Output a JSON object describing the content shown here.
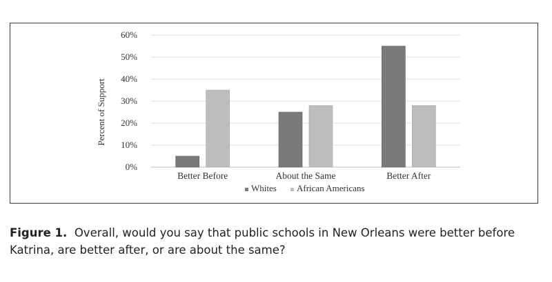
{
  "chart_data": {
    "type": "bar",
    "categories": [
      "Better Before",
      "About the Same",
      "Better After"
    ],
    "series": [
      {
        "name": "Whites",
        "values": [
          5,
          25,
          55
        ],
        "color": "#7a7a7a"
      },
      {
        "name": "African Americans",
        "values": [
          35,
          28,
          28
        ],
        "color": "#bdbdbd"
      }
    ],
    "ylabel": "Percent of Support",
    "ylim": [
      0,
      60
    ],
    "yticks": [
      0,
      10,
      20,
      30,
      40,
      50,
      60
    ],
    "ytick_labels": [
      "0%",
      "10%",
      "20%",
      "30%",
      "40%",
      "50%",
      "60%"
    ],
    "grid": true,
    "legend_position": "bottom"
  },
  "caption": {
    "label": "Figure 1.",
    "text": "Overall, would you say that public schools in New Orleans were better before Katrina, are better after, or are about the same?"
  }
}
